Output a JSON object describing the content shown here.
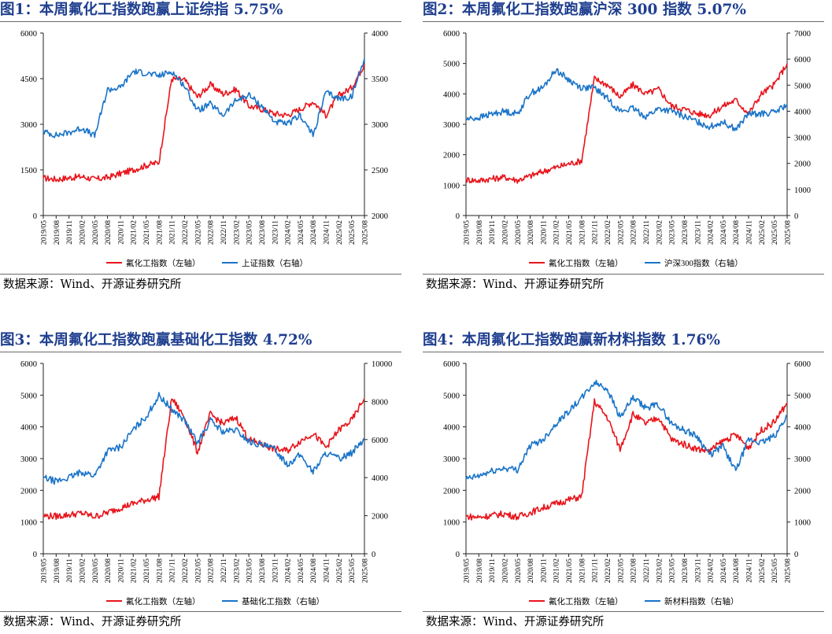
{
  "page": {
    "source_text": "数据来源：Wind、开源证券研究所"
  },
  "chart_data": [
    {
      "type": "line",
      "title": "图1：本周氟化工指数跑赢上证综指 5.75%",
      "x": [
        "2019/05",
        "2019/08",
        "2019/11",
        "2020/02",
        "2020/05",
        "2020/08",
        "2020/11",
        "2021/02",
        "2021/05",
        "2021/08",
        "2021/11",
        "2022/02",
        "2022/05",
        "2022/08",
        "2022/11",
        "2023/02",
        "2023/05",
        "2023/08",
        "2023/11",
        "2024/02",
        "2024/05",
        "2024/08",
        "2024/11",
        "2025/02",
        "2025/05",
        "2025/08"
      ],
      "left_axis": {
        "ylim": [
          0,
          6000
        ],
        "ticks": [
          0,
          1500,
          3000,
          4500,
          6000
        ]
      },
      "right_axis": {
        "ylim": [
          2000,
          4000
        ],
        "ticks": [
          2000,
          2500,
          3000,
          3500,
          4000
        ]
      },
      "legend_placement": "bottom",
      "grid": false,
      "series": [
        {
          "name": "氟化工指数（左轴）",
          "axis": "left",
          "color": "#e8141b",
          "values": [
            1230,
            1190,
            1240,
            1280,
            1190,
            1250,
            1380,
            1500,
            1650,
            1750,
            4500,
            4450,
            3900,
            4300,
            4000,
            4150,
            3600,
            3500,
            3350,
            3300,
            3500,
            3750,
            3300,
            3950,
            4200,
            4980
          ]
        },
        {
          "name": "上证指数（右轴）",
          "axis": "right",
          "color": "#1a74c8",
          "values": [
            2920,
            2880,
            2910,
            2960,
            2870,
            3380,
            3400,
            3580,
            3560,
            3530,
            3580,
            3420,
            3150,
            3220,
            3100,
            3260,
            3320,
            3200,
            3030,
            3000,
            3100,
            2880,
            3350,
            3280,
            3300,
            3720
          ]
        }
      ]
    },
    {
      "type": "line",
      "title": "图2：本周氟化工指数跑赢沪深 300 指数 5.07%",
      "x": [
        "2019/05",
        "2019/08",
        "2019/11",
        "2020/02",
        "2020/05",
        "2020/08",
        "2020/11",
        "2021/02",
        "2021/05",
        "2021/08",
        "2021/11",
        "2022/02",
        "2022/05",
        "2022/08",
        "2022/11",
        "2023/02",
        "2023/05",
        "2023/08",
        "2023/11",
        "2024/02",
        "2024/05",
        "2024/08",
        "2024/11",
        "2025/02",
        "2025/05",
        "2025/08"
      ],
      "left_axis": {
        "ylim": [
          0,
          6000
        ],
        "ticks": [
          0,
          1000,
          2000,
          3000,
          4000,
          5000,
          6000
        ]
      },
      "right_axis": {
        "ylim": [
          0,
          7000
        ],
        "ticks": [
          0,
          1000,
          2000,
          3000,
          4000,
          5000,
          6000,
          7000
        ]
      },
      "legend_placement": "bottom",
      "grid": false,
      "series": [
        {
          "name": "氟化工指数（左轴）",
          "axis": "left",
          "color": "#e8141b",
          "values": [
            1180,
            1150,
            1210,
            1260,
            1160,
            1300,
            1450,
            1580,
            1700,
            1800,
            4500,
            4300,
            3900,
            4300,
            4000,
            4150,
            3600,
            3500,
            3350,
            3300,
            3600,
            3800,
            3350,
            4000,
            4300,
            5000
          ]
        },
        {
          "name": "沪深300指数（右轴）",
          "axis": "right",
          "color": "#1a74c8",
          "values": [
            3700,
            3750,
            3900,
            4000,
            3900,
            4700,
            4900,
            5600,
            5200,
            4900,
            4900,
            4500,
            4000,
            4100,
            3800,
            4100,
            4000,
            3800,
            3600,
            3400,
            3600,
            3300,
            3900,
            3900,
            3950,
            4250
          ]
        }
      ]
    },
    {
      "type": "line",
      "title": "图3：本周氟化工指数跑赢基础化工指数 4.72%",
      "x": [
        "2019/05",
        "2019/08",
        "2019/11",
        "2020/02",
        "2020/05",
        "2020/08",
        "2020/11",
        "2021/02",
        "2021/05",
        "2021/08",
        "2021/11",
        "2022/02",
        "2022/05",
        "2022/08",
        "2022/11",
        "2023/02",
        "2023/05",
        "2023/08",
        "2023/11",
        "2024/02",
        "2024/05",
        "2024/08",
        "2024/11",
        "2025/02",
        "2025/05",
        "2025/08"
      ],
      "left_axis": {
        "ylim": [
          0,
          6000
        ],
        "ticks": [
          0,
          1000,
          2000,
          3000,
          4000,
          5000,
          6000
        ]
      },
      "right_axis": {
        "ylim": [
          0,
          10000
        ],
        "ticks": [
          0,
          2000,
          4000,
          6000,
          8000,
          10000
        ]
      },
      "legend_placement": "bottom",
      "grid": false,
      "series": [
        {
          "name": "氟化工指数（左轴）",
          "axis": "left",
          "color": "#e8141b",
          "values": [
            1200,
            1180,
            1230,
            1280,
            1170,
            1300,
            1450,
            1580,
            1700,
            1800,
            4900,
            4300,
            3200,
            4400,
            4100,
            4300,
            3600,
            3450,
            3300,
            3250,
            3550,
            3800,
            3350,
            3900,
            4200,
            4900
          ]
        },
        {
          "name": "基础化工指数（右轴）",
          "axis": "right",
          "color": "#1a74c8",
          "values": [
            4000,
            3800,
            4000,
            4300,
            4100,
            5400,
            5600,
            6500,
            7200,
            8300,
            7600,
            7000,
            5800,
            7000,
            6400,
            6500,
            5900,
            5700,
            5500,
            4700,
            5200,
            4300,
            5300,
            5000,
            5300,
            6050
          ]
        }
      ]
    },
    {
      "type": "line",
      "title": "图4：本周氟化工指数跑赢新材料指数 1.76%",
      "x": [
        "2019/05",
        "2019/08",
        "2019/11",
        "2020/02",
        "2020/05",
        "2020/08",
        "2020/11",
        "2021/02",
        "2021/05",
        "2021/08",
        "2021/11",
        "2022/02",
        "2022/05",
        "2022/08",
        "2022/11",
        "2023/02",
        "2023/05",
        "2023/08",
        "2023/11",
        "2024/02",
        "2024/05",
        "2024/08",
        "2024/11",
        "2025/02",
        "2025/05",
        "2025/08"
      ],
      "left_axis": {
        "ylim": [
          0,
          6000
        ],
        "ticks": [
          0,
          1000,
          2000,
          3000,
          4000,
          5000,
          6000
        ]
      },
      "right_axis": {
        "ylim": [
          0,
          6000
        ],
        "ticks": [
          0,
          1000,
          2000,
          3000,
          4000,
          5000,
          6000
        ]
      },
      "legend_placement": "bottom",
      "grid": false,
      "series": [
        {
          "name": "氟化工指数（左轴）",
          "axis": "left",
          "color": "#e8141b",
          "values": [
            1180,
            1150,
            1210,
            1260,
            1160,
            1300,
            1450,
            1580,
            1700,
            1800,
            4800,
            4300,
            3300,
            4400,
            4100,
            4300,
            3600,
            3450,
            3300,
            3250,
            3550,
            3750,
            3350,
            3900,
            4150,
            4750
          ]
        },
        {
          "name": "新材料指数（右轴）",
          "axis": "right",
          "color": "#1a74c8",
          "values": [
            2350,
            2450,
            2600,
            2700,
            2650,
            3400,
            3600,
            4100,
            4500,
            4900,
            5400,
            5200,
            4300,
            4900,
            4600,
            4700,
            4100,
            3900,
            3700,
            3100,
            3400,
            2600,
            3600,
            3500,
            3700,
            4350
          ]
        }
      ]
    }
  ]
}
